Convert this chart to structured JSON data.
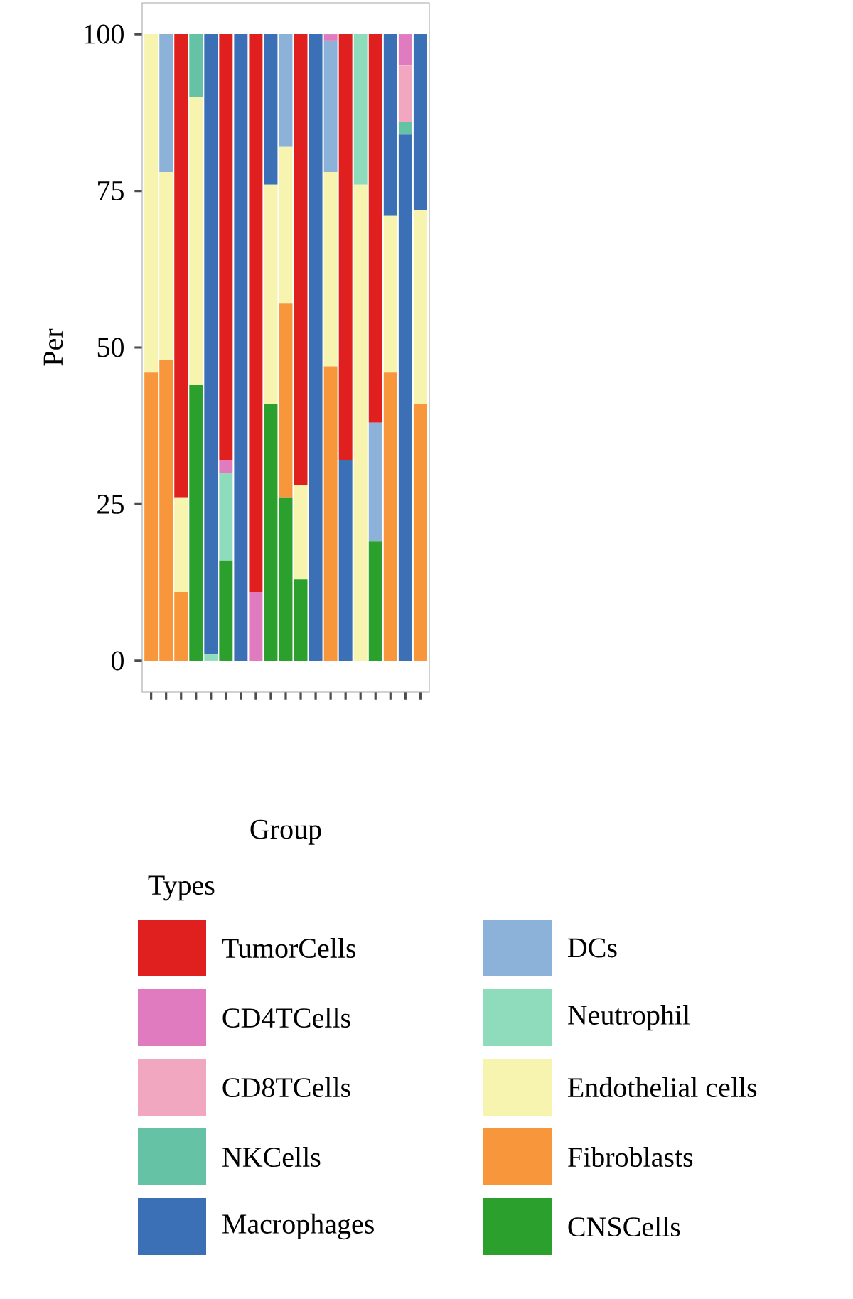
{
  "chart_data": {
    "type": "bar",
    "stacked": true,
    "xlabel": "Group",
    "ylabel": "Per",
    "legend_title": "Types",
    "legend": "bottom",
    "categories": [
      null,
      null,
      null,
      null,
      null,
      null,
      null,
      null,
      null,
      null,
      null,
      null,
      null,
      null,
      null,
      null,
      null,
      null,
      null
    ],
    "ylim": [
      -5,
      105
    ],
    "yticks": [
      0,
      25,
      50,
      75,
      100
    ],
    "series": [
      {
        "name": "CNSCells",
        "color": "#2ca02c",
        "values": [
          0,
          0,
          0,
          44,
          0,
          16,
          0,
          0,
          41,
          26,
          13,
          0,
          0,
          0,
          0,
          19,
          0,
          0,
          0
        ]
      },
      {
        "name": "Fibroblasts",
        "color": "#f7963a",
        "values": [
          46,
          48,
          11,
          0,
          0,
          0,
          0,
          0,
          0,
          31,
          0,
          0,
          47,
          0,
          0,
          0,
          46,
          0,
          41
        ]
      },
      {
        "name": "Endothelial cells",
        "color": "#f7f4b0",
        "values": [
          54,
          30,
          15,
          46,
          0,
          0,
          0,
          0,
          35,
          25,
          15,
          0,
          31,
          0,
          76,
          0,
          25,
          0,
          31
        ]
      },
      {
        "name": "Neutrophil",
        "color": "#8fdcbd",
        "values": [
          0,
          0,
          0,
          0,
          1,
          14,
          0,
          0,
          0,
          0,
          0,
          0,
          0,
          0,
          24,
          0,
          0,
          0,
          0
        ]
      },
      {
        "name": "DCs",
        "color": "#8cb2da",
        "values": [
          0,
          22,
          0,
          0,
          0,
          0,
          0,
          0,
          0,
          18,
          0,
          0,
          21,
          0,
          0,
          19,
          0,
          0,
          0
        ]
      },
      {
        "name": "Macrophages",
        "color": "#3b6fb6",
        "values": [
          0,
          0,
          0,
          0,
          99,
          0,
          100,
          0,
          24,
          0,
          0,
          100,
          0,
          32,
          0,
          0,
          29,
          84,
          28
        ]
      },
      {
        "name": "NKCells",
        "color": "#66c2a5",
        "values": [
          0,
          0,
          0,
          10,
          0,
          0,
          0,
          0,
          0,
          0,
          0,
          0,
          0,
          0,
          0,
          0,
          0,
          2,
          0
        ]
      },
      {
        "name": "CD8TCells",
        "color": "#f2a7c0",
        "values": [
          0,
          0,
          0,
          0,
          0,
          0,
          0,
          0,
          0,
          0,
          0,
          0,
          0,
          0,
          0,
          0,
          0,
          9,
          0
        ]
      },
      {
        "name": "CD4TCells",
        "color": "#e07bbf",
        "values": [
          0,
          0,
          0,
          0,
          0,
          2,
          0,
          11,
          0,
          0,
          0,
          0,
          1,
          0,
          0,
          0,
          0,
          5,
          0
        ]
      },
      {
        "name": "TumorCells",
        "color": "#e0201f",
        "values": [
          0,
          0,
          74,
          0,
          0,
          68,
          0,
          89,
          0,
          0,
          72,
          0,
          0,
          68,
          0,
          62,
          0,
          0,
          0
        ]
      }
    ]
  }
}
